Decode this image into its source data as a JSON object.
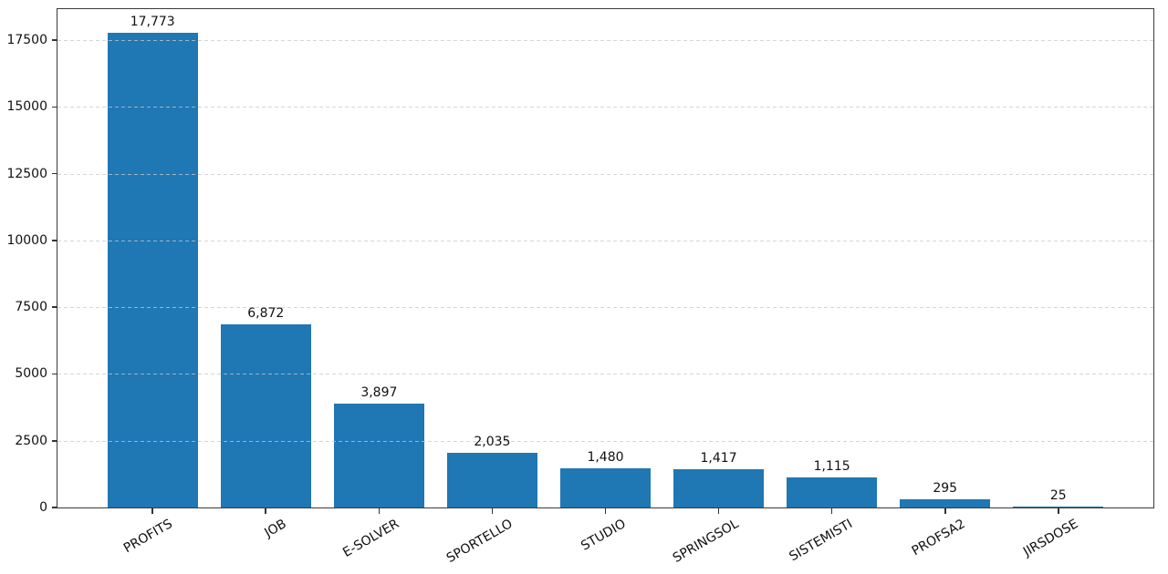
{
  "chart_data": {
    "type": "bar",
    "title": "",
    "xlabel": "",
    "ylabel": "",
    "categories": [
      "PROFITS",
      "JOB",
      "E-SOLVER",
      "SPORTELLO",
      "STUDIO",
      "SPRINGSOL",
      "SISTEMISTI",
      "PROFSA2",
      "JIRSDOSE"
    ],
    "values": [
      17773,
      6872,
      3897,
      2035,
      1480,
      1417,
      1115,
      295,
      25
    ],
    "value_labels": [
      "17,773",
      "6,872",
      "3,897",
      "2,035",
      "1,480",
      "1,417",
      "1,115",
      "295",
      "25"
    ],
    "ylim": [
      0,
      18661.65
    ],
    "yticks": [
      0,
      2500,
      5000,
      7500,
      10000,
      12500,
      15000,
      17500
    ],
    "ytick_labels": [
      "0",
      "2500",
      "5000",
      "7500",
      "10000",
      "12500",
      "15000",
      "17500"
    ],
    "xtick_label_rotation_deg": 30,
    "grid": {
      "axis": "y",
      "style": "dashed",
      "color": "#cccccc",
      "above_bars": true
    },
    "legend": null,
    "bar_color": "#1f77b4",
    "bar_width_fraction": 0.8
  },
  "colors": {
    "background": "#ffffff",
    "spine": "#3a3a3a",
    "tick": "#333333",
    "text": "#111111"
  }
}
